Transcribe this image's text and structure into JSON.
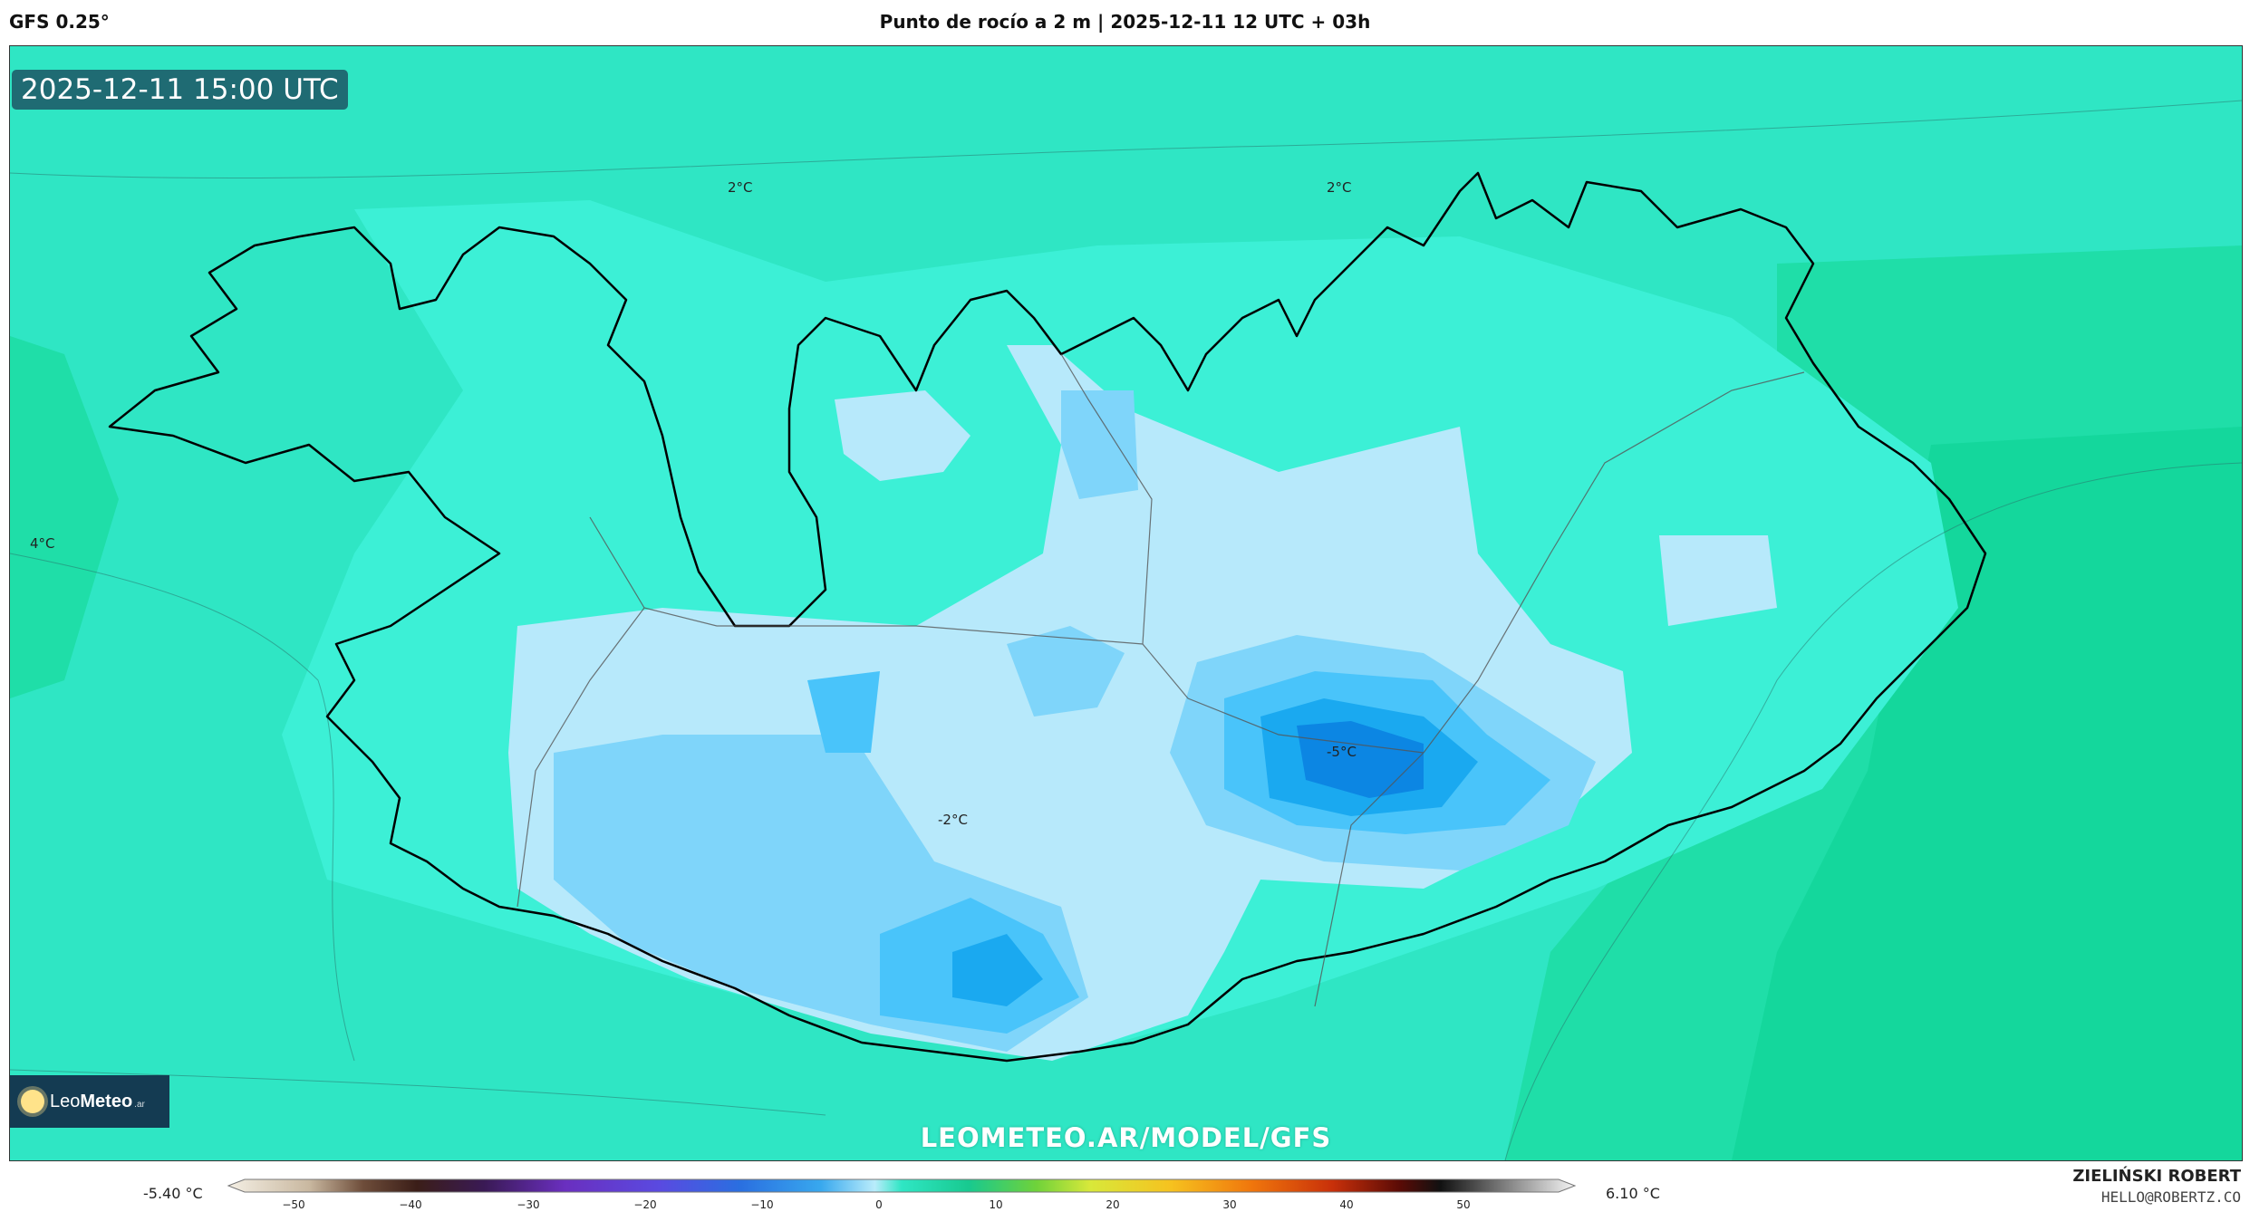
{
  "header": {
    "model": "GFS 0.25°",
    "title": "Punto de rocío a 2 m | 2025-12-11 12 UTC + 03h"
  },
  "map": {
    "valid_time": "2025-12-11 15:00 UTC",
    "contour_labels": [
      {
        "text": "2°C"
      },
      {
        "text": "2°C"
      },
      {
        "text": "4°C"
      },
      {
        "text": "-5°C"
      },
      {
        "text": "-2°C"
      }
    ],
    "colors": {
      "ocean_warm": "#1fdea8",
      "ocean": "#2fe6c4",
      "land_mid": "#3cf0d6",
      "cold_1": "#b7e9fb",
      "cold_2": "#7fd5fa",
      "cold_3": "#49c4fa",
      "cold_4": "#1aa9f0",
      "cold_5": "#0c86e3",
      "coast": "#000000"
    },
    "watermark": "LEOMETEO.AR/MODEL/GFS",
    "logo": {
      "brand_a": "Leo",
      "brand_b": "Meteo",
      "suffix": ".ar"
    }
  },
  "legend": {
    "min_label": "-5.40 °C",
    "max_label": "6.10 °C",
    "ticks": [
      "−50",
      "−40",
      "−30",
      "−20",
      "−10",
      "0",
      "10",
      "20",
      "30",
      "40",
      "50"
    ]
  },
  "credits": {
    "author": "ZIELIŃSKI ROBERT",
    "email": "HELLO@ROBERTZ.CO"
  }
}
